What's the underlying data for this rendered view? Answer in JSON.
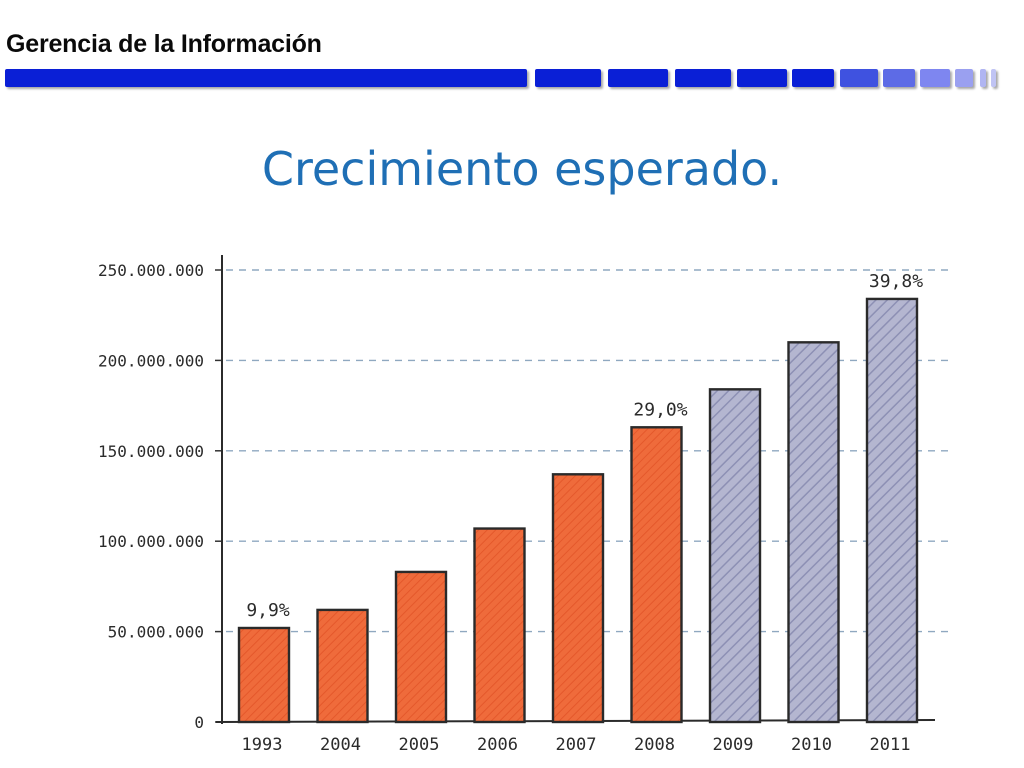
{
  "header": {
    "title": "Gerencia de la Información"
  },
  "colors": {
    "header_bar_dark": "#0a1fd6",
    "header_bar_light": "#7e86f0",
    "actual_bar": "#ee6a3a",
    "projected_bar": "#a9abc9",
    "title": "#1f6fb5",
    "grid": "#8fa8c0"
  },
  "chart_data": {
    "type": "bar",
    "title": "Crecimiento esperado.",
    "xlabel": "",
    "ylabel": "",
    "ylim": [
      0,
      250000000
    ],
    "grid": true,
    "y_ticks": [
      "0",
      "50.000.000",
      "100.000.000",
      "150.000.000",
      "200.000.000",
      "250.000.000"
    ],
    "y_tick_values": [
      0,
      50000000,
      100000000,
      150000000,
      200000000,
      250000000
    ],
    "categories": [
      "1993",
      "2004",
      "2005",
      "2006",
      "2007",
      "2008",
      "2009",
      "2010",
      "2011"
    ],
    "values": [
      52000000,
      62000000,
      83000000,
      107000000,
      137000000,
      163000000,
      184000000,
      210000000,
      234000000
    ],
    "series_style": [
      "actual",
      "actual",
      "actual",
      "actual",
      "actual",
      "actual",
      "projected",
      "projected",
      "projected"
    ],
    "annotations": [
      {
        "category": "1993",
        "text": "9,9%"
      },
      {
        "category": "2008",
        "text": "29,0%"
      },
      {
        "category": "2011",
        "text": "39,8%"
      }
    ]
  }
}
